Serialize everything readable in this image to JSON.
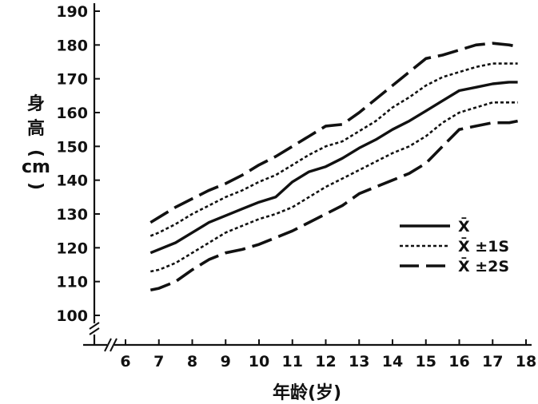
{
  "chart_data": {
    "type": "line",
    "xlabel": "年龄(岁)",
    "ylabel": [
      "身",
      "高",
      "(",
      "cm",
      ")"
    ],
    "x_ticks": [
      "6",
      "7",
      "8",
      "9",
      "10",
      "11",
      "12",
      "13",
      "14",
      "15",
      "16",
      "17",
      "18"
    ],
    "y_ticks": [
      "100",
      "110",
      "120",
      "130",
      "140",
      "150",
      "160",
      "170",
      "180",
      "190"
    ],
    "xlim": [
      6,
      18
    ],
    "ylim": [
      100,
      190
    ],
    "axis_break": true,
    "grid": false,
    "legend_position": "right",
    "x": [
      6.75,
      7,
      7.5,
      8,
      8.5,
      9,
      9.5,
      10,
      10.5,
      11,
      11.5,
      12,
      12.5,
      13,
      13.5,
      14,
      14.5,
      15,
      15.5,
      16,
      16.5,
      17,
      17.5,
      17.75
    ],
    "series": [
      {
        "name": "X̄",
        "style": "solid",
        "values": [
          118.5,
          119.5,
          121.5,
          124.5,
          127.5,
          129.5,
          131.5,
          133.5,
          135,
          139.5,
          142.5,
          144,
          146.5,
          149.5,
          152,
          155,
          157.5,
          160.5,
          163.5,
          166.5,
          167.5,
          168.5,
          169,
          169
        ]
      },
      {
        "name": "X̄ ±1S",
        "style": "dotted",
        "values": [
          123.5,
          124.5,
          127,
          130,
          132.5,
          135,
          137,
          139.5,
          141.5,
          144.5,
          147.5,
          150,
          151.5,
          154.5,
          157.5,
          161.5,
          164.5,
          168,
          170.5,
          172,
          173.5,
          174.5,
          174.5,
          174.5
        ]
      },
      {
        "name": "",
        "style": "dotted",
        "values": [
          113,
          113.5,
          115.5,
          118.5,
          121.5,
          124.5,
          126.5,
          128.5,
          130,
          132,
          135,
          138,
          140.5,
          143,
          145.5,
          148,
          150,
          153,
          157,
          160,
          161.5,
          163,
          163,
          163
        ]
      },
      {
        "name": "X̄ ±2S",
        "style": "dashed",
        "values": [
          127.5,
          129,
          132,
          134.5,
          137,
          139,
          141.5,
          144.5,
          147,
          150,
          153,
          156,
          156.5,
          160,
          164,
          168,
          172,
          176,
          177,
          178.5,
          180,
          180.5,
          180,
          179.5
        ]
      },
      {
        "name": "",
        "style": "dashed",
        "values": [
          107.5,
          108,
          110,
          113.5,
          116.5,
          118.5,
          119.5,
          121,
          123,
          125,
          127.5,
          130,
          132.5,
          136,
          138,
          140,
          142,
          145,
          150,
          155,
          156,
          157,
          157,
          157.5
        ]
      }
    ],
    "legend": [
      {
        "label": "X̄",
        "style": "solid"
      },
      {
        "label": "X̄ ±1S",
        "style": "dotted"
      },
      {
        "label": "X̄ ±2S",
        "style": "dashed"
      }
    ]
  }
}
